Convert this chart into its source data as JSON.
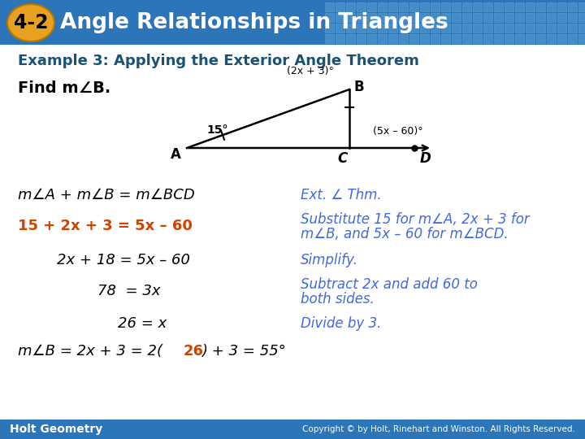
{
  "header_bg_color": "#2B75B8",
  "header_text": "Angle Relationships in Triangles",
  "header_badge_text": "4-2",
  "header_badge_bg": "#E8A020",
  "header_badge_text_color": "#000000",
  "header_text_color": "#FFFFFF",
  "example_title": "Example 3: Applying the Exterior Angle Theorem",
  "example_title_color": "#1A5276",
  "body_bg_color": "#FFFFFF",
  "find_text": "Find m∠B.",
  "find_text_color": "#000000",
  "line1_left": "m∠A + m∠B = m∠BCD",
  "line1_right": "Ext. ∠ Thm.",
  "line1_color": "#000000",
  "line1_right_color": "#4169E1",
  "line2_left": "15 + 2x + 3 = 5x – 60",
  "line2_right1": "Substitute 15 for m∠A, 2x + 3 for",
  "line2_right2": "m∠B, and 5x – 60 for m∠BCD.",
  "line2_color_orange": "#CC4400",
  "line2_right_color": "#4169E1",
  "line3_left": "2x + 18 = 5x – 60",
  "line3_right": "Simplify.",
  "line3_color": "#000000",
  "line3_right_color": "#4169E1",
  "line4_left": "78  = 3x",
  "line4_right1": "Subtract 2x and add 60 to",
  "line4_right2": "both sides.",
  "line4_color": "#000000",
  "line4_right_color": "#4169E1",
  "line5_left": "26 = x",
  "line5_right": "Divide by 3.",
  "line5_color": "#000000",
  "line5_right_color": "#4169E1",
  "line6_part1": "m∠B = 2x + 3 = 2(",
  "line6_part2": "26",
  "line6_part3": ") + 3 = 55°",
  "line6_color": "#000000",
  "line6_color_orange": "#CC4400",
  "footer_bg_color": "#2B75B8",
  "footer_left": "Holt Geometry",
  "footer_right": "Copyright © by Holt, Rinehart and Winston. All Rights Reserved.",
  "footer_text_color": "#FFFFFF",
  "tile_color": "#5A9FD4",
  "tile_edge_color": "#6AB0E0"
}
